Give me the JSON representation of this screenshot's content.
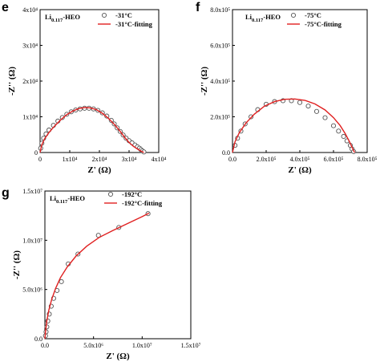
{
  "chart_data": [
    {
      "type": "scatter",
      "panel_letter": "e",
      "sample_label": {
        "base": "Li",
        "subscript": "0.117",
        "suffix": "-HEO"
      },
      "xlabel": "Z' (Ω)",
      "ylabel": "-Z'' (Ω)",
      "xlim": [
        0,
        40000
      ],
      "ylim": [
        0,
        40000
      ],
      "x_ticks": [
        {
          "value": 0,
          "label": "0"
        },
        {
          "value": 10000,
          "label": "1x10⁴"
        },
        {
          "value": 20000,
          "label": "2x10⁴"
        },
        {
          "value": 30000,
          "label": "3x10⁴"
        },
        {
          "value": 40000,
          "label": "4x10⁴"
        }
      ],
      "y_ticks": [
        {
          "value": 0,
          "label": "0"
        },
        {
          "value": 10000,
          "label": "1x10⁴"
        },
        {
          "value": 20000,
          "label": "2x10⁴"
        },
        {
          "value": 30000,
          "label": "3x10⁴"
        },
        {
          "value": 40000,
          "label": "4x10⁴"
        }
      ],
      "legend": {
        "position": "top-right",
        "entries": [
          "-31°C",
          "-31°C-fitting"
        ]
      },
      "series": [
        {
          "name": "-31°C",
          "kind": "markers",
          "color": "#555555",
          "x": [
            200,
            600,
            1200,
            2000,
            3000,
            4500,
            6000,
            7500,
            9000,
            10500,
            12000,
            13500,
            15000,
            16500,
            18000,
            19500,
            21000,
            22500,
            24000,
            25000,
            26000,
            27000,
            28000,
            29000,
            30000,
            31000,
            32000,
            32800,
            33500,
            34000,
            34500,
            35000
          ],
          "y": [
            1200,
            2600,
            4000,
            5200,
            6300,
            7600,
            8800,
            9800,
            10700,
            11400,
            11900,
            12200,
            12400,
            12400,
            12200,
            11800,
            11100,
            10200,
            9000,
            8000,
            6900,
            5900,
            4900,
            4000,
            3300,
            2700,
            2100,
            1600,
            1200,
            800,
            450,
            150
          ]
        },
        {
          "name": "-31°C-fitting",
          "kind": "line",
          "color": "#e02020",
          "x": [
            0,
            500,
            1500,
            3000,
            5000,
            7000,
            9000,
            11000,
            13000,
            15000,
            17000,
            19000,
            21000,
            23000,
            25000,
            27000,
            28500,
            30000,
            31500,
            33000,
            34000,
            35000
          ],
          "y": [
            0,
            2000,
            3800,
            5600,
            7500,
            9200,
            10600,
            11600,
            12300,
            12600,
            12500,
            12000,
            11000,
            9600,
            7900,
            5900,
            4300,
            2800,
            1700,
            900,
            400,
            0
          ]
        }
      ]
    },
    {
      "type": "scatter",
      "panel_letter": "f",
      "sample_label": {
        "base": "Li",
        "subscript": "0.117",
        "suffix": "-HEO"
      },
      "xlabel": "Z' (Ω)",
      "ylabel": "-Z'' (Ω)",
      "xlim": [
        0,
        800000
      ],
      "ylim": [
        0,
        800000
      ],
      "x_ticks": [
        {
          "value": 0,
          "label": "0.0"
        },
        {
          "value": 200000,
          "label": "2.0x10⁵"
        },
        {
          "value": 400000,
          "label": "4.0x10⁵"
        },
        {
          "value": 600000,
          "label": "6.0x10⁵"
        },
        {
          "value": 800000,
          "label": "8.0x10⁵"
        }
      ],
      "y_ticks": [
        {
          "value": 0,
          "label": "0.0"
        },
        {
          "value": 200000,
          "label": "2.0x10⁵"
        },
        {
          "value": 400000,
          "label": "4.0x10⁵"
        },
        {
          "value": 600000,
          "label": "6.0x10⁵"
        },
        {
          "value": 800000,
          "label": "8.0x10⁵"
        }
      ],
      "legend": {
        "position": "top-right",
        "entries": [
          "-75°C",
          "-75°C-fitting"
        ]
      },
      "series": [
        {
          "name": "-75°C",
          "kind": "markers",
          "color": "#555555",
          "x": [
            15000,
            30000,
            50000,
            75000,
            110000,
            150000,
            200000,
            250000,
            300000,
            350000,
            400000,
            450000,
            500000,
            550000,
            600000,
            630000,
            660000,
            680000,
            700000,
            710000,
            720000
          ],
          "y": [
            40000,
            80000,
            120000,
            160000,
            200000,
            240000,
            270000,
            285000,
            290000,
            290000,
            280000,
            260000,
            230000,
            195000,
            150000,
            120000,
            90000,
            65000,
            40000,
            20000,
            5000
          ]
        },
        {
          "name": "-75°C-fitting",
          "kind": "line",
          "color": "#e02020",
          "x": [
            0,
            15000,
            40000,
            80000,
            130000,
            190000,
            250000,
            310000,
            370000,
            430000,
            490000,
            550000,
            600000,
            640000,
            670000,
            695000,
            715000,
            725000
          ],
          "y": [
            0,
            60000,
            110000,
            165000,
            215000,
            260000,
            285000,
            298000,
            300000,
            292000,
            272000,
            238000,
            195000,
            150000,
            105000,
            60000,
            20000,
            0
          ]
        }
      ]
    },
    {
      "type": "scatter",
      "panel_letter": "g",
      "sample_label": {
        "base": "Li",
        "subscript": "0.117",
        "suffix": "-HEO"
      },
      "xlabel": "Z' (Ω)",
      "ylabel": "-Z'' (Ω)",
      "xlim": [
        0,
        15000000
      ],
      "ylim": [
        0,
        15000000
      ],
      "x_ticks": [
        {
          "value": 0,
          "label": "0.0"
        },
        {
          "value": 5000000,
          "label": "5.0x10⁶"
        },
        {
          "value": 10000000,
          "label": "1.0x10⁷"
        },
        {
          "value": 15000000,
          "label": "1.5x10⁷"
        }
      ],
      "y_ticks": [
        {
          "value": 0,
          "label": "0.0"
        },
        {
          "value": 5000000,
          "label": "5.0x10⁶"
        },
        {
          "value": 10000000,
          "label": "1.0x10⁷"
        },
        {
          "value": 15000000,
          "label": "1.5x10⁷"
        }
      ],
      "legend": {
        "position": "top-left",
        "entries": [
          "-192°C",
          "-192°C-fitting"
        ]
      },
      "series": [
        {
          "name": "-192°C",
          "kind": "markers",
          "color": "#555555",
          "x": [
            60000,
            120000,
            200000,
            300000,
            450000,
            650000,
            900000,
            1250000,
            1700000,
            2400000,
            3400000,
            5500000,
            7600000,
            10600000
          ],
          "y": [
            300000,
            700000,
            1200000,
            1800000,
            2500000,
            3300000,
            4100000,
            4900000,
            5800000,
            7600000,
            8600000,
            10500000,
            11300000,
            12700000
          ]
        },
        {
          "name": "-192°C-fitting",
          "kind": "line",
          "color": "#e02020",
          "x": [
            0,
            80000,
            200000,
            400000,
            700000,
            1100000,
            1600000,
            2300000,
            3200000,
            4300000,
            5600000,
            7000000,
            8500000,
            10000000,
            10700000
          ],
          "y": [
            0,
            900000,
            1800000,
            2900000,
            4000000,
            5100000,
            6200000,
            7300000,
            8400000,
            9400000,
            10300000,
            11000000,
            11700000,
            12400000,
            12750000
          ]
        }
      ]
    }
  ]
}
